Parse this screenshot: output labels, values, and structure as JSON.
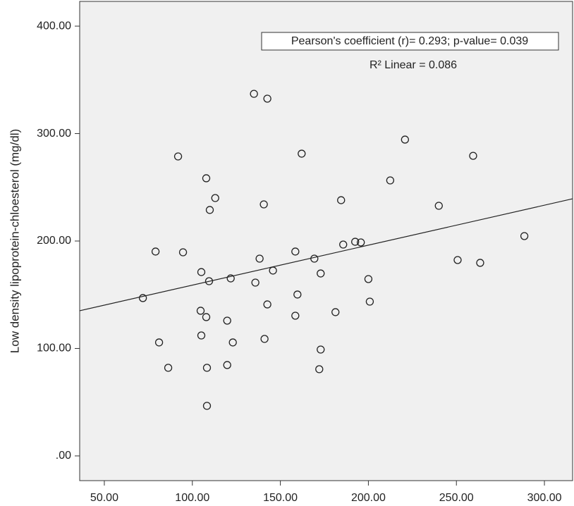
{
  "chart_data": {
    "type": "scatter",
    "y_label": "Low density lipoprotein-chloesterol (mg/dl)",
    "annotations": [
      "Pearson's coefficient (r)= 0.293; p-value= 0.039",
      "R² Linear = 0.086"
    ],
    "xlim": [
      36,
      316
    ],
    "ylim": [
      -23,
      423
    ],
    "xticks": [
      {
        "value": 50,
        "label": "50.00"
      },
      {
        "value": 100,
        "label": "100.00"
      },
      {
        "value": 150,
        "label": "150.00"
      },
      {
        "value": 200,
        "label": "200.00"
      },
      {
        "value": 250,
        "label": "250.00"
      },
      {
        "value": 300,
        "label": "300.00"
      }
    ],
    "yticks": [
      {
        "value": 0,
        "label": ".00"
      },
      {
        "value": 100,
        "label": "100.00"
      },
      {
        "value": 200,
        "label": "200.00"
      },
      {
        "value": 300,
        "label": "300.00"
      },
      {
        "value": 400,
        "label": "400.00"
      }
    ],
    "color": "#222222",
    "background": "#f0f0f0",
    "x": [
      71.9,
      79.1,
      81.1,
      86.3,
      91.9,
      94.7,
      105.1,
      104.7,
      105.1,
      107.9,
      107.9,
      108.3,
      108.3,
      109.5,
      109.9,
      113.0,
      119.8,
      119.8,
      121.8,
      123.0,
      135.0,
      135.8,
      138.2,
      140.6,
      141.0,
      142.6,
      142.6,
      145.8,
      158.5,
      158.5,
      159.7,
      162.1,
      169.3,
      172.9,
      172.9,
      172.1,
      181.3,
      184.5,
      185.7,
      192.5,
      195.7,
      200.0,
      200.8,
      212.4,
      220.8,
      240.0,
      250.7,
      259.5,
      263.5,
      288.6
    ],
    "values": [
      146.9,
      190.2,
      105.6,
      82.0,
      278.7,
      189.5,
      171.1,
      135.1,
      112.1,
      258.4,
      129.2,
      82.0,
      46.6,
      162.6,
      228.9,
      240.0,
      125.9,
      84.6,
      165.2,
      105.6,
      337.0,
      161.3,
      183.6,
      234.1,
      108.9,
      141.0,
      332.5,
      172.5,
      190.2,
      130.5,
      150.2,
      281.3,
      183.6,
      169.8,
      99.0,
      80.7,
      133.8,
      238.0,
      196.7,
      199.3,
      198.7,
      164.6,
      143.6,
      256.4,
      294.4,
      232.8,
      182.3,
      279.3,
      179.7,
      204.6
    ],
    "fit_line": {
      "x": [
        36,
        316
      ],
      "values": [
        135.1,
        239.3
      ]
    }
  }
}
